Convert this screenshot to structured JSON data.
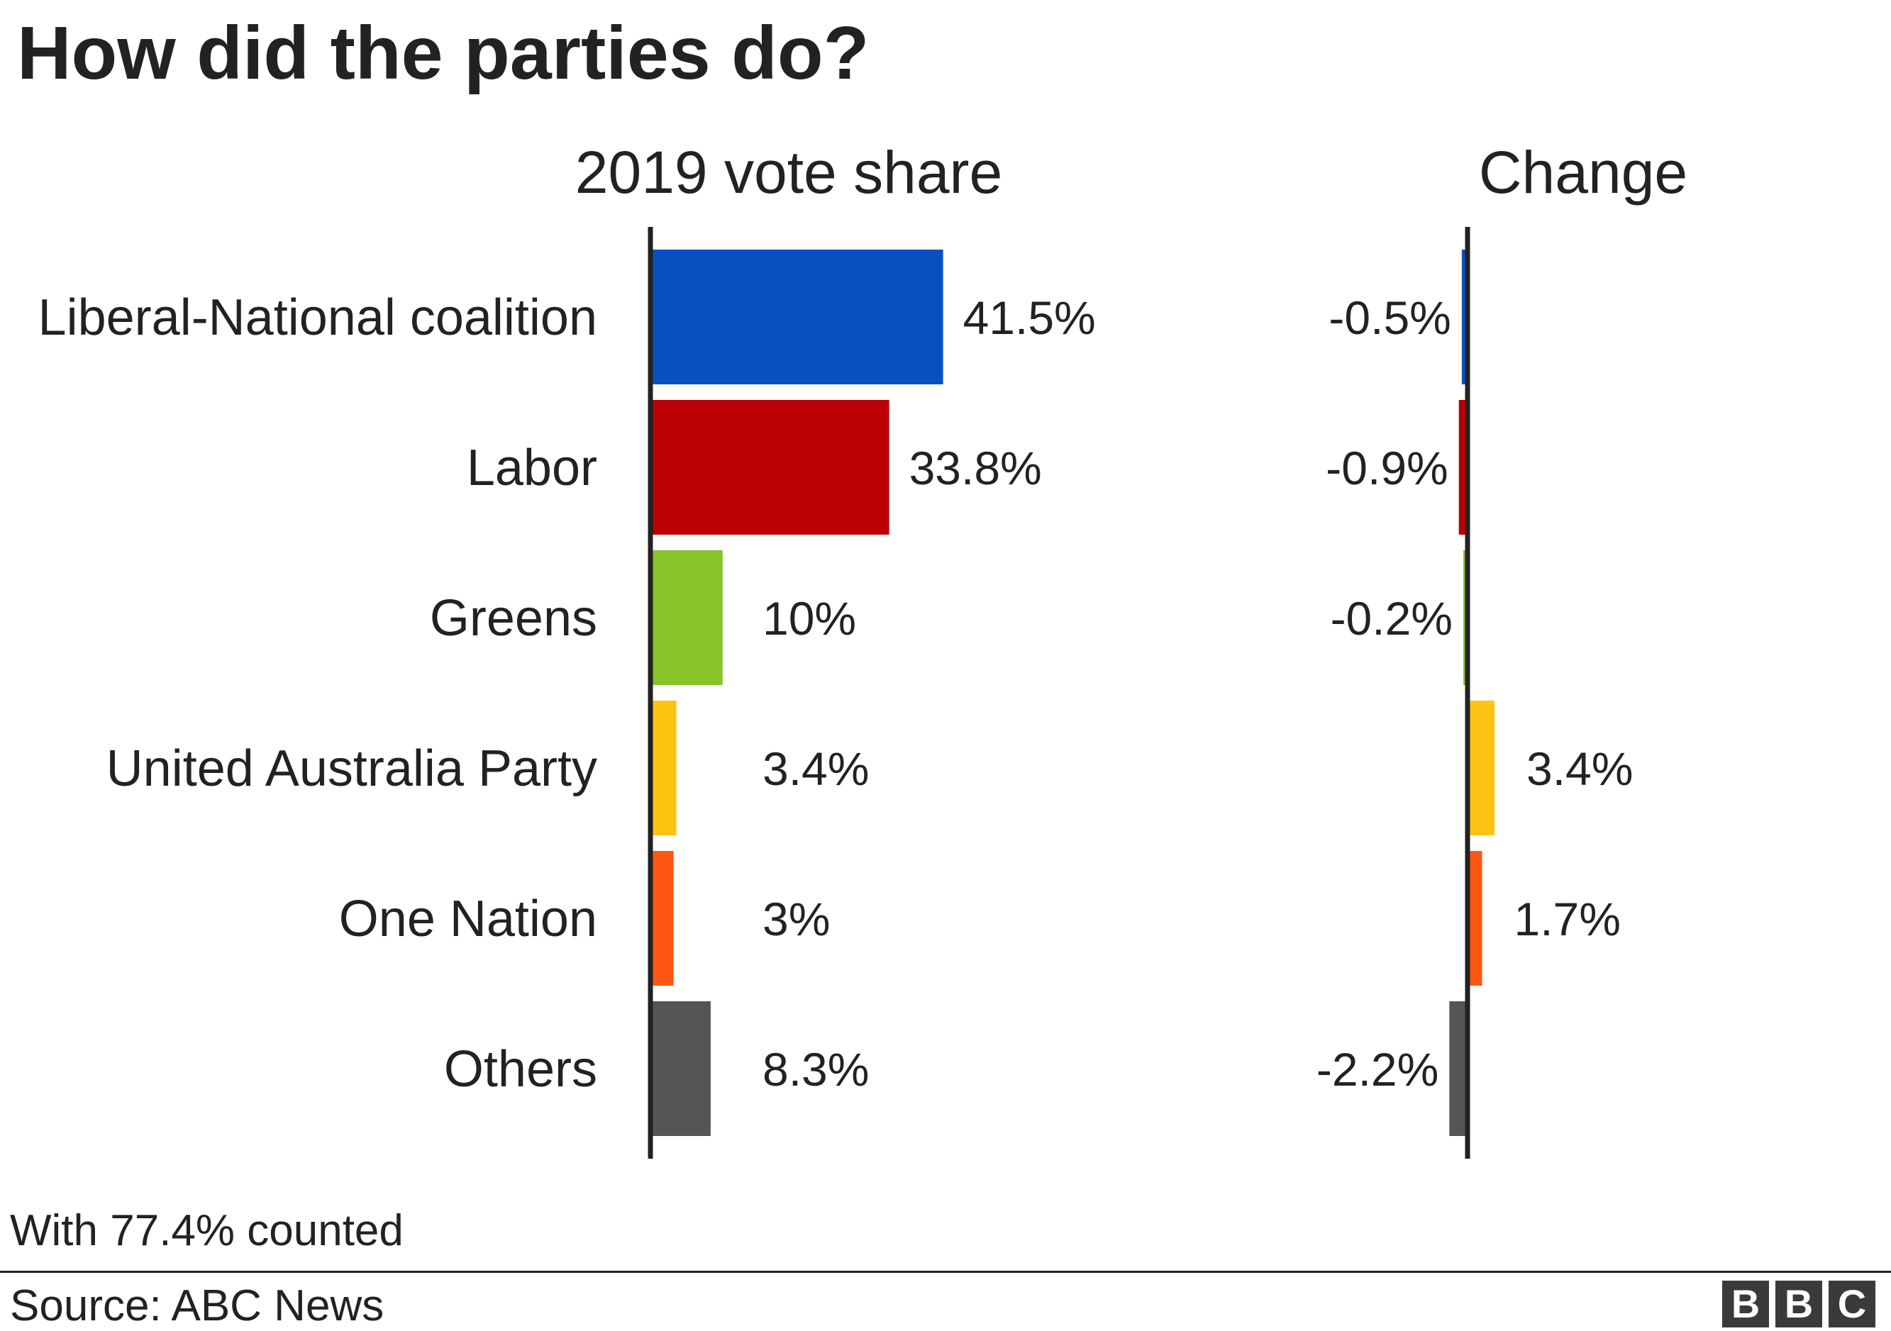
{
  "title": "How did the parties do?",
  "footnote": "With 77.4% counted",
  "source": "Source: ABC News",
  "logo": [
    "B",
    "B",
    "C"
  ],
  "chart_data": [
    {
      "type": "bar",
      "orientation": "horizontal",
      "title": "2019 vote share",
      "categories": [
        "Liberal-National coalition",
        "Labor",
        "Greens",
        "United Australia Party",
        "One Nation",
        "Others"
      ],
      "values": [
        41.5,
        33.8,
        10,
        3.4,
        3,
        8.3
      ],
      "labels": [
        "41.5%",
        "33.8%",
        "10%",
        "3.4%",
        "3%",
        "8.3%"
      ],
      "colors": [
        "#0a4fc0",
        "#bb0006",
        "#86c42a",
        "#fdc412",
        "#fe5712",
        "#555555"
      ],
      "xlim": [
        0,
        100
      ],
      "grid": false,
      "legend": "none"
    },
    {
      "type": "bar",
      "orientation": "horizontal",
      "title": "Change",
      "categories": [
        "Liberal-National coalition",
        "Labor",
        "Greens",
        "United Australia Party",
        "One Nation",
        "Others"
      ],
      "values": [
        -0.5,
        -0.9,
        -0.2,
        3.4,
        1.7,
        -2.2
      ],
      "labels": [
        "-0.5%",
        "-0.9%",
        "-0.2%",
        "3.4%",
        "1.7%",
        "-2.2%"
      ],
      "colors": [
        "#0a4fc0",
        "#bb0006",
        "#86c42a",
        "#fdc412",
        "#fe5712",
        "#555555"
      ],
      "grid": false,
      "legend": "none"
    }
  ]
}
